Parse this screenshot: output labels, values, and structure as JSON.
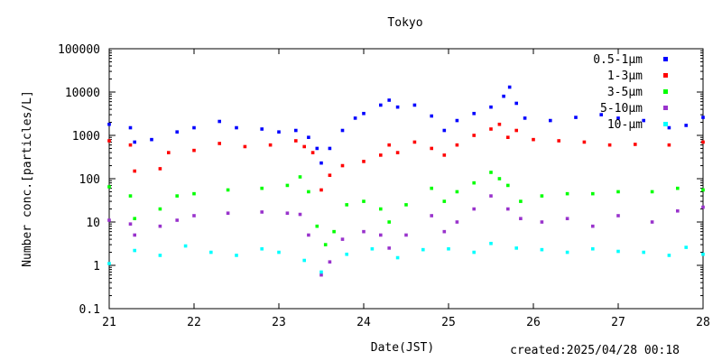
{
  "chart_data": {
    "type": "scatter",
    "title": "Tokyo",
    "xlabel": "Date(JST)",
    "ylabel": "Number conc.[particles/L]",
    "y_scale": "log",
    "ylim": [
      0.1,
      100000
    ],
    "xlim": [
      21,
      28
    ],
    "x_ticks": [
      "21",
      "22",
      "23",
      "24",
      "25",
      "26",
      "27",
      "28"
    ],
    "y_ticks": [
      "0.1",
      "1",
      "10",
      "100",
      "1000",
      "10000",
      "100000"
    ],
    "legend_position": "top-right",
    "grid": false,
    "series": [
      {
        "name": "0.5-1μm",
        "color": "#0000ff",
        "points": [
          [
            21.0,
            1800
          ],
          [
            21.25,
            1500
          ],
          [
            21.3,
            700
          ],
          [
            21.5,
            800
          ],
          [
            21.8,
            1200
          ],
          [
            22.0,
            1500
          ],
          [
            22.3,
            2100
          ],
          [
            22.5,
            1500
          ],
          [
            22.8,
            1400
          ],
          [
            23.0,
            1200
          ],
          [
            23.2,
            1300
          ],
          [
            23.35,
            900
          ],
          [
            23.45,
            500
          ],
          [
            23.5,
            230
          ],
          [
            23.6,
            500
          ],
          [
            23.75,
            1300
          ],
          [
            23.9,
            2500
          ],
          [
            24.0,
            3200
          ],
          [
            24.2,
            5000
          ],
          [
            24.3,
            6500
          ],
          [
            24.4,
            4500
          ],
          [
            24.6,
            5000
          ],
          [
            24.8,
            2800
          ],
          [
            24.95,
            1300
          ],
          [
            25.1,
            2200
          ],
          [
            25.3,
            3200
          ],
          [
            25.5,
            4500
          ],
          [
            25.65,
            8000
          ],
          [
            25.72,
            13000
          ],
          [
            25.8,
            5500
          ],
          [
            25.9,
            2500
          ],
          [
            26.2,
            2200
          ],
          [
            26.5,
            2600
          ],
          [
            26.8,
            3000
          ],
          [
            27.0,
            2500
          ],
          [
            27.3,
            2200
          ],
          [
            27.6,
            1500
          ],
          [
            27.8,
            1700
          ],
          [
            28.0,
            2600
          ]
        ]
      },
      {
        "name": "1-3μm",
        "color": "#ff0000",
        "points": [
          [
            21.0,
            750
          ],
          [
            21.25,
            600
          ],
          [
            21.3,
            150
          ],
          [
            21.6,
            170
          ],
          [
            21.7,
            400
          ],
          [
            22.0,
            450
          ],
          [
            22.3,
            650
          ],
          [
            22.6,
            550
          ],
          [
            22.9,
            600
          ],
          [
            23.2,
            750
          ],
          [
            23.3,
            550
          ],
          [
            23.4,
            400
          ],
          [
            23.5,
            55
          ],
          [
            23.6,
            120
          ],
          [
            23.75,
            200
          ],
          [
            24.0,
            250
          ],
          [
            24.2,
            350
          ],
          [
            24.3,
            600
          ],
          [
            24.4,
            400
          ],
          [
            24.6,
            700
          ],
          [
            24.8,
            500
          ],
          [
            24.95,
            350
          ],
          [
            25.1,
            600
          ],
          [
            25.3,
            1000
          ],
          [
            25.5,
            1400
          ],
          [
            25.6,
            1800
          ],
          [
            25.7,
            900
          ],
          [
            25.8,
            1300
          ],
          [
            26.0,
            800
          ],
          [
            26.3,
            750
          ],
          [
            26.6,
            700
          ],
          [
            26.9,
            600
          ],
          [
            27.2,
            620
          ],
          [
            27.6,
            600
          ],
          [
            28.0,
            700
          ]
        ]
      },
      {
        "name": "3-5μm",
        "color": "#00ff00",
        "points": [
          [
            21.0,
            65
          ],
          [
            21.25,
            40
          ],
          [
            21.3,
            12
          ],
          [
            21.6,
            20
          ],
          [
            21.8,
            40
          ],
          [
            22.0,
            45
          ],
          [
            22.4,
            55
          ],
          [
            22.8,
            60
          ],
          [
            23.1,
            70
          ],
          [
            23.25,
            110
          ],
          [
            23.35,
            50
          ],
          [
            23.45,
            8
          ],
          [
            23.55,
            3
          ],
          [
            23.65,
            6
          ],
          [
            23.8,
            25
          ],
          [
            24.0,
            30
          ],
          [
            24.2,
            20
          ],
          [
            24.3,
            10
          ],
          [
            24.5,
            25
          ],
          [
            24.8,
            60
          ],
          [
            24.95,
            30
          ],
          [
            25.1,
            50
          ],
          [
            25.3,
            80
          ],
          [
            25.5,
            140
          ],
          [
            25.6,
            100
          ],
          [
            25.7,
            70
          ],
          [
            25.85,
            30
          ],
          [
            26.1,
            40
          ],
          [
            26.4,
            45
          ],
          [
            26.7,
            45
          ],
          [
            27.0,
            50
          ],
          [
            27.4,
            50
          ],
          [
            27.7,
            60
          ],
          [
            28.0,
            55
          ]
        ]
      },
      {
        "name": "5-10μm",
        "color": "#9933cc",
        "points": [
          [
            21.0,
            11
          ],
          [
            21.25,
            9
          ],
          [
            21.3,
            5
          ],
          [
            21.6,
            8
          ],
          [
            21.8,
            11
          ],
          [
            22.0,
            14
          ],
          [
            22.4,
            16
          ],
          [
            22.8,
            17
          ],
          [
            23.1,
            16
          ],
          [
            23.25,
            15
          ],
          [
            23.35,
            5
          ],
          [
            23.5,
            0.6
          ],
          [
            23.6,
            1.2
          ],
          [
            23.75,
            4
          ],
          [
            24.0,
            6
          ],
          [
            24.2,
            5
          ],
          [
            24.3,
            2.5
          ],
          [
            24.5,
            5
          ],
          [
            24.8,
            14
          ],
          [
            24.95,
            6
          ],
          [
            25.1,
            10
          ],
          [
            25.3,
            20
          ],
          [
            25.5,
            40
          ],
          [
            25.7,
            20
          ],
          [
            25.85,
            12
          ],
          [
            26.1,
            10
          ],
          [
            26.4,
            12
          ],
          [
            26.7,
            8
          ],
          [
            27.0,
            14
          ],
          [
            27.4,
            10
          ],
          [
            27.7,
            18
          ],
          [
            28.0,
            22
          ]
        ]
      },
      {
        "name": "10-μm",
        "color": "#00ffff",
        "points": [
          [
            21.0,
            1.1
          ],
          [
            21.3,
            2.2
          ],
          [
            21.6,
            1.7
          ],
          [
            21.9,
            2.8
          ],
          [
            22.2,
            2.0
          ],
          [
            22.5,
            1.7
          ],
          [
            22.8,
            2.4
          ],
          [
            23.0,
            2.0
          ],
          [
            23.3,
            1.3
          ],
          [
            23.5,
            0.7
          ],
          [
            23.8,
            1.8
          ],
          [
            24.1,
            2.4
          ],
          [
            24.4,
            1.5
          ],
          [
            24.7,
            2.3
          ],
          [
            25.0,
            2.4
          ],
          [
            25.3,
            2.0
          ],
          [
            25.5,
            3.2
          ],
          [
            25.8,
            2.5
          ],
          [
            26.1,
            2.3
          ],
          [
            26.4,
            2.0
          ],
          [
            26.7,
            2.4
          ],
          [
            27.0,
            2.1
          ],
          [
            27.3,
            2.0
          ],
          [
            27.6,
            1.7
          ],
          [
            27.8,
            2.6
          ],
          [
            28.0,
            1.8
          ]
        ]
      }
    ]
  },
  "footer": {
    "created_label": "created:2025/04/28 00:18"
  }
}
